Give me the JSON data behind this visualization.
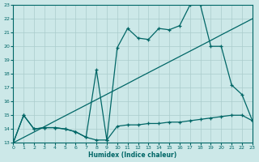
{
  "xlabel": "Humidex (Indice chaleur)",
  "xlim": [
    0,
    23
  ],
  "ylim": [
    13,
    23
  ],
  "xticks": [
    0,
    1,
    2,
    3,
    4,
    5,
    6,
    7,
    8,
    9,
    10,
    11,
    12,
    13,
    14,
    15,
    16,
    17,
    18,
    19,
    20,
    21,
    22,
    23
  ],
  "yticks": [
    13,
    14,
    15,
    16,
    17,
    18,
    19,
    20,
    21,
    22,
    23
  ],
  "bg_color": "#cce8e8",
  "line_color": "#006666",
  "grid_color": "#aacccc",
  "line_diagonal": {
    "x": [
      0,
      1,
      2,
      3,
      4,
      5,
      6,
      7,
      8,
      9,
      10,
      11,
      12,
      13,
      14,
      15,
      16,
      17,
      18,
      19,
      20,
      21,
      22,
      23
    ],
    "y": [
      13.0,
      13.39,
      13.78,
      14.17,
      14.57,
      14.96,
      15.35,
      15.74,
      16.13,
      16.52,
      16.91,
      17.3,
      17.7,
      18.09,
      18.48,
      18.87,
      19.26,
      19.65,
      20.04,
      20.43,
      20.83,
      21.22,
      21.61,
      22.0
    ]
  },
  "line_zigzag": {
    "x": [
      0,
      1,
      2,
      3,
      4,
      5,
      6,
      7,
      8,
      9,
      10,
      11,
      12,
      13,
      14,
      15,
      16,
      17,
      18,
      19,
      20,
      21,
      22,
      23
    ],
    "y": [
      13.0,
      15.0,
      14.0,
      14.1,
      14.1,
      14.0,
      13.8,
      13.4,
      18.3,
      13.2,
      19.9,
      21.3,
      20.6,
      20.5,
      21.3,
      21.2,
      21.5,
      23.0,
      23.0,
      20.0,
      20.0,
      17.2,
      16.5,
      14.6
    ]
  },
  "line_flat": {
    "x": [
      0,
      1,
      2,
      3,
      4,
      5,
      6,
      7,
      8,
      9,
      10,
      11,
      12,
      13,
      14,
      15,
      16,
      17,
      18,
      19,
      20,
      21,
      22,
      23
    ],
    "y": [
      13.0,
      15.0,
      14.0,
      14.1,
      14.1,
      14.0,
      13.8,
      13.4,
      13.2,
      13.2,
      14.2,
      14.3,
      14.3,
      14.4,
      14.4,
      14.5,
      14.5,
      14.6,
      14.7,
      14.8,
      14.9,
      15.0,
      15.0,
      14.6
    ]
  }
}
